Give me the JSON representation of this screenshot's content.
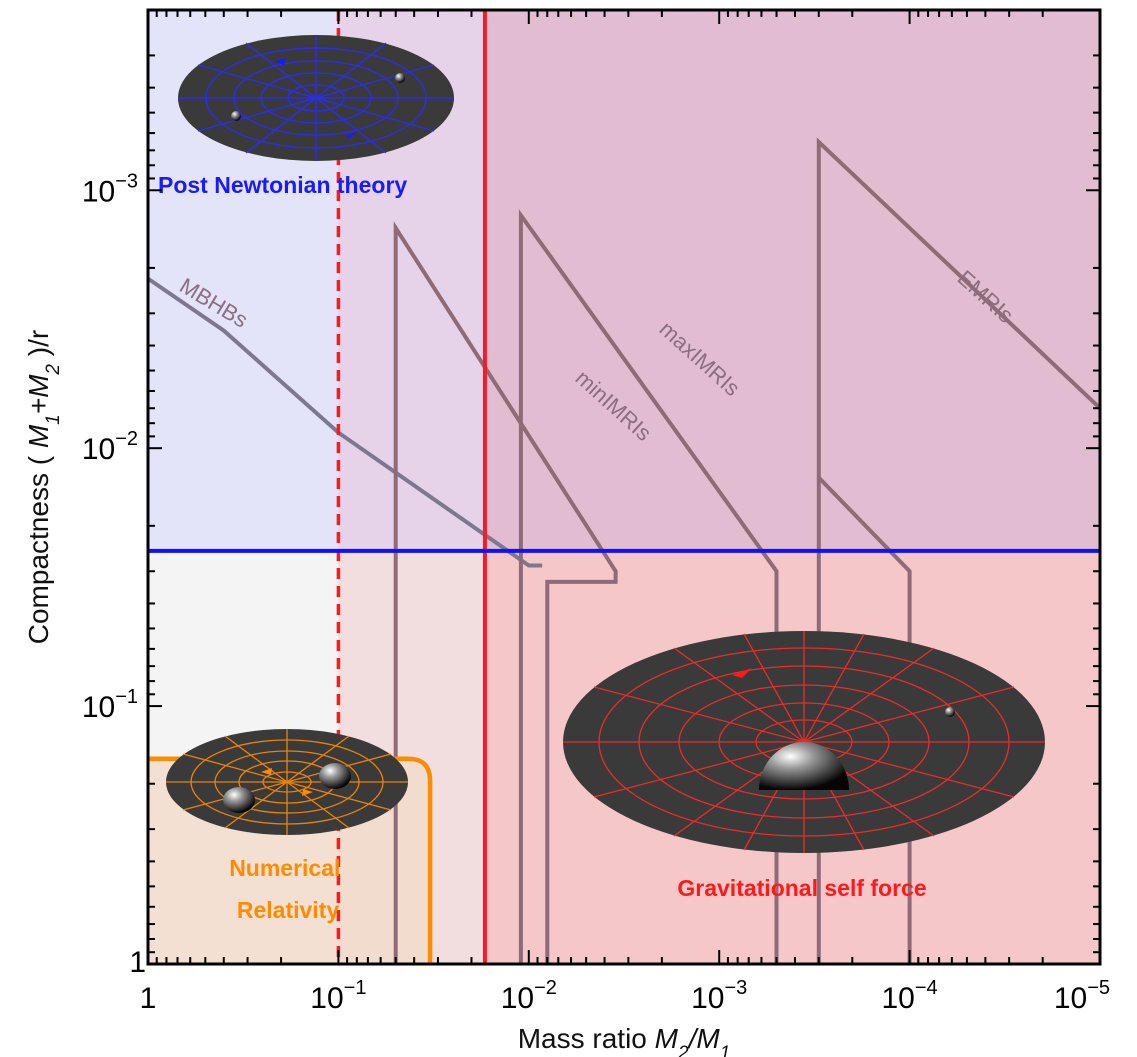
{
  "chart_data": {
    "type": "line",
    "xlabel_prefix": "Mass ratio ",
    "xlabel_math": "M2/M1",
    "ylabel_prefix": "Compactness (",
    "ylabel_math": "M1+M2",
    "ylabel_suffix": ")/r",
    "x_log_scale": true,
    "y_log_scale": true,
    "y_axis_inverted": true,
    "xlim": [
      1,
      1e-05
    ],
    "ylim": [
      1,
      0.0002
    ],
    "x_ticks": [
      {
        "base": "1",
        "exp": ""
      },
      {
        "base": "10",
        "exp": "−1"
      },
      {
        "base": "10",
        "exp": "−2"
      },
      {
        "base": "10",
        "exp": "−3"
      },
      {
        "base": "10",
        "exp": "−4"
      },
      {
        "base": "10",
        "exp": "−5"
      }
    ],
    "y_ticks": [
      {
        "base": "1",
        "exp": "",
        "value": 1
      },
      {
        "base": "10",
        "exp": "−1",
        "value": 0.1
      },
      {
        "base": "10",
        "exp": "−2",
        "value": 0.01
      },
      {
        "base": "10",
        "exp": "−3",
        "value": 0.001
      }
    ],
    "grid": false,
    "boundaries": {
      "pn_compactness": 0.025,
      "gsf_mass_ratio_solid": 0.017,
      "gsf_mass_ratio_dashed": 0.1,
      "nr_mass_ratio": 0.033,
      "nr_compactness": 0.16
    },
    "regions": [
      {
        "name": "Post Newtonian theory",
        "color": "#0000ff"
      },
      {
        "name": "Numerical Relativity",
        "color": "#ff8000"
      },
      {
        "name": "Gravitational self force",
        "color": "#ff0000"
      }
    ],
    "region_label_lines": {
      "nr": [
        "Numerical",
        "Relativity"
      ]
    },
    "series": [
      {
        "name": "MBHBs",
        "x": [
          1,
          0.4,
          0.1,
          0.01,
          0.0085
        ],
        "y": [
          0.0022,
          0.0035,
          0.0087,
          0.0285,
          0.0285
        ]
      },
      {
        "name": "minIMRIs",
        "x": [
          0.05,
          0.05,
          0.0035,
          0.0035,
          0.008,
          0.008
        ],
        "y": [
          1,
          0.0014,
          0.03,
          0.033,
          0.033,
          1
        ]
      },
      {
        "name": "maxIMRIs",
        "x": [
          0.011,
          0.011,
          0.0005,
          0.0005,
          0.0005
        ],
        "y": [
          1,
          0.00125,
          0.03,
          0.03,
          1
        ]
      },
      {
        "name": "EMRIs",
        "x": [
          0.0003,
          0.0003,
          1e-05
        ],
        "y": [
          1,
          0.00065,
          0.007
        ]
      },
      {
        "name": "",
        "x": [
          0.0003,
          0.0001,
          0.0001
        ],
        "y": [
          0.013,
          0.03,
          1
        ]
      }
    ]
  }
}
